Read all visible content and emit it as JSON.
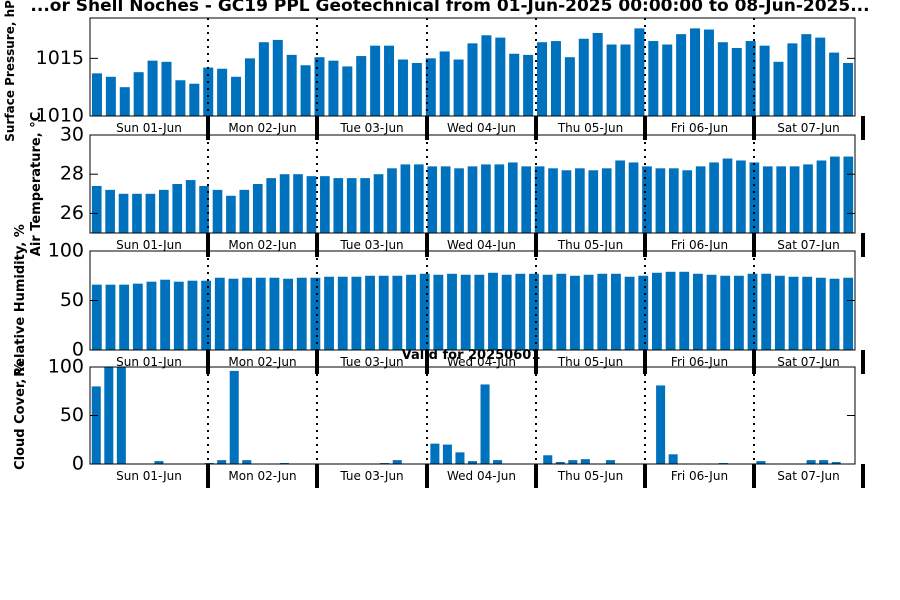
{
  "title": "...or Shell Noches - GC19 PPL Geotechnical from 01-Jun-2025 00:00:00 to 08-Jun-2025...",
  "valid_label": "Valid for 20250601",
  "colors": {
    "bar": "#0071bc",
    "axis": "#000000"
  },
  "chart_data": [
    {
      "type": "bar",
      "ylabel": "Surface Pressure, hPa",
      "ylim": [
        1010,
        1018.5
      ],
      "yticks": [
        1010,
        1015
      ],
      "day_labels": [
        "Sun 01-Jun",
        "Mon 02-Jun",
        "Tue 03-Jun",
        "Wed 04-Jun",
        "Thu 05-Jun",
        "Fri 06-Jun",
        "Sat 07-Jun"
      ],
      "values": [
        1013.7,
        1013.4,
        1012.5,
        1013.8,
        1014.8,
        1014.7,
        1013.1,
        1012.8,
        1014.2,
        1014.1,
        1013.4,
        1015.0,
        1016.4,
        1016.6,
        1015.3,
        1014.4,
        1015.1,
        1014.8,
        1014.3,
        1015.2,
        1016.1,
        1016.1,
        1014.9,
        1014.6,
        1015.0,
        1015.6,
        1014.9,
        1016.3,
        1017.0,
        1016.8,
        1015.4,
        1015.3,
        1016.4,
        1016.5,
        1015.1,
        1016.7,
        1017.2,
        1016.2,
        1016.2,
        1017.6,
        1016.5,
        1016.2,
        1017.1,
        1017.6,
        1017.5,
        1016.4,
        1015.9,
        1016.5,
        1016.1,
        1014.7,
        1016.3,
        1017.1,
        1016.8,
        1015.5,
        1014.6
      ],
      "grid": false
    },
    {
      "type": "bar",
      "ylabel": "Air Temperature, °C",
      "ylim": [
        25,
        30
      ],
      "yticks": [
        26,
        28,
        30
      ],
      "day_labels": [
        "Sun 01-Jun",
        "Mon 02-Jun",
        "Tue 03-Jun",
        "Wed 04-Jun",
        "Thu 05-Jun",
        "Fri 06-Jun",
        "Sat 07-Jun"
      ],
      "values": [
        27.4,
        27.2,
        27.0,
        27.0,
        27.0,
        27.2,
        27.5,
        27.7,
        27.4,
        27.2,
        26.9,
        27.2,
        27.5,
        27.8,
        28.0,
        28.0,
        27.9,
        27.9,
        27.8,
        27.8,
        27.8,
        28.0,
        28.3,
        28.5,
        28.5,
        28.4,
        28.4,
        28.3,
        28.4,
        28.5,
        28.5,
        28.6,
        28.4,
        28.4,
        28.3,
        28.2,
        28.3,
        28.2,
        28.3,
        28.7,
        28.6,
        28.4,
        28.3,
        28.3,
        28.2,
        28.4,
        28.6,
        28.8,
        28.7,
        28.6,
        28.4,
        28.4,
        28.4,
        28.5,
        28.7,
        28.9,
        28.9
      ],
      "grid": false
    },
    {
      "type": "bar",
      "ylabel": "Relative Humidity, %",
      "ylim": [
        0,
        100
      ],
      "yticks": [
        0,
        50,
        100
      ],
      "day_labels": [
        "Sun 01-Jun",
        "Mon 02-Jun",
        "Tue 03-Jun",
        "Wed 04-Jun",
        "Thu 05-Jun",
        "Fri 06-Jun",
        "Sat 07-Jun"
      ],
      "values": [
        66,
        66,
        66,
        67,
        69,
        71,
        69,
        70,
        70,
        73,
        72,
        73,
        73,
        73,
        72,
        73,
        73,
        74,
        74,
        74,
        75,
        75,
        75,
        76,
        77,
        76,
        77,
        76,
        76,
        78,
        76,
        77,
        77,
        76,
        77,
        75,
        76,
        77,
        77,
        74,
        75,
        78,
        79,
        79,
        77,
        76,
        75,
        75,
        77,
        77,
        75,
        74,
        74,
        73,
        72,
        73
      ],
      "grid": false
    },
    {
      "type": "bar",
      "ylabel": "Cloud Cover, %",
      "ylim": [
        0,
        100
      ],
      "yticks": [
        0,
        50,
        100
      ],
      "day_labels": [
        "Sun 01-Jun",
        "Mon 02-Jun",
        "Tue 03-Jun",
        "Wed 04-Jun",
        "Thu 05-Jun",
        "Fri 06-Jun",
        "Sat 07-Jun"
      ],
      "values": [
        80,
        100,
        100,
        0,
        0,
        3,
        0,
        0,
        0,
        1,
        4,
        96,
        4,
        0,
        0,
        1,
        0,
        0,
        0,
        0,
        0,
        0,
        0,
        1,
        4,
        0,
        0,
        21,
        20,
        12,
        3,
        82,
        4,
        0,
        0,
        0,
        9,
        2,
        4,
        5,
        0,
        4,
        0,
        0,
        0,
        81,
        10,
        0,
        0,
        0,
        1,
        0,
        0,
        3,
        0,
        0,
        0,
        4,
        4,
        2,
        0
      ],
      "grid": false
    }
  ]
}
